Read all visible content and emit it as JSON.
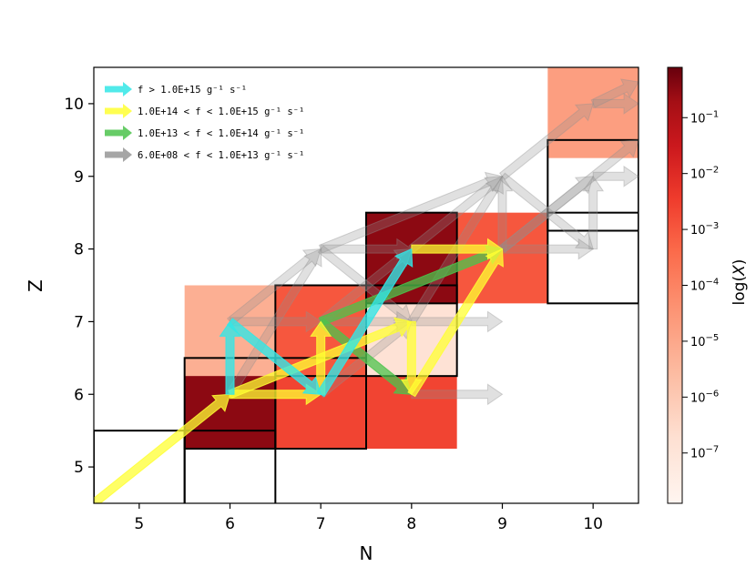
{
  "chart_data": {
    "type": "heatmap",
    "title": "",
    "xlabel": "N",
    "ylabel": "Z",
    "xlim": [
      4.5,
      10.5
    ],
    "ylim": [
      4.5,
      10.5
    ],
    "xticks": [
      "5",
      "6",
      "7",
      "8",
      "9",
      "10"
    ],
    "yticks": [
      "5",
      "6",
      "7",
      "8",
      "9",
      "10"
    ],
    "colorbar": {
      "label": "log(X)",
      "scale": "log",
      "ticks": [
        {
          "base": "10",
          "exp": "−1"
        },
        {
          "base": "10",
          "exp": "−2"
        },
        {
          "base": "10",
          "exp": "−3"
        },
        {
          "base": "10",
          "exp": "−4"
        },
        {
          "base": "10",
          "exp": "−5"
        },
        {
          "base": "10",
          "exp": "−6"
        },
        {
          "base": "10",
          "exp": "−7"
        }
      ]
    },
    "cells": [
      {
        "n": 5,
        "z": 5,
        "log_x": null,
        "stable": true
      },
      {
        "n": 6,
        "z": 5,
        "log_x": null,
        "stable": true
      },
      {
        "n": 6,
        "z": 6,
        "log_x": -0.6,
        "stable": true
      },
      {
        "n": 7,
        "z": 6,
        "log_x": -3.2,
        "stable": true
      },
      {
        "n": 8,
        "z": 6,
        "log_x": -3.2,
        "stable": false
      },
      {
        "n": 6,
        "z": 7,
        "log_x": -5.7,
        "stable": false
      },
      {
        "n": 7,
        "z": 7,
        "log_x": -3.6,
        "stable": true
      },
      {
        "n": 8,
        "z": 7,
        "log_x": -7.1,
        "stable": true
      },
      {
        "n": 8,
        "z": 8,
        "log_x": -0.6,
        "stable": true
      },
      {
        "n": 9,
        "z": 8,
        "log_x": -3.6,
        "stable": false
      },
      {
        "n": 10,
        "z": 8,
        "log_x": null,
        "stable": true
      },
      {
        "n": 10,
        "z": 9,
        "log_x": null,
        "stable": true
      },
      {
        "n": 10,
        "z": 10,
        "log_x": -5.3,
        "stable": false
      }
    ],
    "legend": [
      {
        "label": "f > 1.0E+15 g⁻¹ s⁻¹",
        "color": "#33e6e6"
      },
      {
        "label": "1.0E+14 < f < 1.0E+15 g⁻¹ s⁻¹",
        "color": "#ffff33"
      },
      {
        "label": "1.0E+13 < f < 1.0E+14 g⁻¹ s⁻¹",
        "color": "#4cc34c"
      },
      {
        "label": "6.0E+08 < f < 1.0E+13 g⁻¹ s⁻¹",
        "color": "#909090"
      }
    ],
    "flows": [
      {
        "from": [
          6,
          6
        ],
        "to": [
          6,
          7
        ],
        "band": 0
      },
      {
        "from": [
          6,
          7
        ],
        "to": [
          7,
          6
        ],
        "band": 0
      },
      {
        "from": [
          7,
          6
        ],
        "to": [
          8,
          8
        ],
        "band": 0
      },
      {
        "from": [
          4.5,
          4.5
        ],
        "to": [
          6,
          6
        ],
        "band": 1
      },
      {
        "from": [
          6,
          6
        ],
        "to": [
          7,
          6
        ],
        "band": 1
      },
      {
        "from": [
          7,
          6
        ],
        "to": [
          7,
          7
        ],
        "band": 1
      },
      {
        "from": [
          6,
          6
        ],
        "to": [
          8,
          7
        ],
        "band": 1
      },
      {
        "from": [
          8,
          7
        ],
        "to": [
          8,
          6
        ],
        "band": 1
      },
      {
        "from": [
          8,
          6
        ],
        "to": [
          9,
          8
        ],
        "band": 1
      },
      {
        "from": [
          8,
          8
        ],
        "to": [
          9,
          8
        ],
        "band": 1
      },
      {
        "from": [
          7,
          7
        ],
        "to": [
          9,
          8
        ],
        "band": 2
      },
      {
        "from": [
          7,
          7
        ],
        "to": [
          8,
          6
        ],
        "band": 2
      },
      {
        "from": [
          6,
          6
        ],
        "to": [
          7,
          8
        ],
        "band": 3
      },
      {
        "from": [
          7,
          8
        ],
        "to": [
          9,
          9
        ],
        "band": 3
      },
      {
        "from": [
          9,
          8
        ],
        "to": [
          9,
          9
        ],
        "band": 3
      },
      {
        "from": [
          8,
          7
        ],
        "to": [
          9,
          9
        ],
        "band": 3
      },
      {
        "from": [
          9,
          9
        ],
        "to": [
          10,
          10
        ],
        "band": 3
      },
      {
        "from": [
          9,
          9
        ],
        "to": [
          10,
          8
        ],
        "band": 3
      },
      {
        "from": [
          7,
          7
        ],
        "to": [
          8,
          7
        ],
        "band": 3
      },
      {
        "from": [
          10,
          10
        ],
        "to": [
          10.5,
          10.3
        ],
        "band": 3
      },
      {
        "from": [
          6,
          7
        ],
        "to": [
          7,
          7
        ],
        "band": 3
      },
      {
        "from": [
          7,
          8
        ],
        "to": [
          8,
          8
        ],
        "band": 3
      },
      {
        "from": [
          6,
          7
        ],
        "to": [
          7,
          8
        ],
        "band": 3
      },
      {
        "from": [
          8,
          7
        ],
        "to": [
          9,
          7
        ],
        "band": 3
      },
      {
        "from": [
          8,
          6
        ],
        "to": [
          9,
          6
        ],
        "band": 3
      },
      {
        "from": [
          7,
          8
        ],
        "to": [
          8,
          7
        ],
        "band": 3
      },
      {
        "from": [
          8,
          8
        ],
        "to": [
          9,
          9
        ],
        "band": 3
      },
      {
        "from": [
          9,
          8
        ],
        "to": [
          10,
          9
        ],
        "band": 3
      },
      {
        "from": [
          10,
          8
        ],
        "to": [
          10,
          9
        ],
        "band": 3
      },
      {
        "from": [
          9,
          8
        ],
        "to": [
          10,
          8
        ],
        "band": 3
      },
      {
        "from": [
          7,
          7
        ],
        "to": [
          8,
          8
        ],
        "band": 3
      },
      {
        "from": [
          10,
          9
        ],
        "to": [
          10.5,
          9
        ],
        "band": 3
      },
      {
        "from": [
          10,
          10
        ],
        "to": [
          10.5,
          10
        ],
        "band": 3
      },
      {
        "from": [
          9,
          8
        ],
        "to": [
          10.5,
          9.5
        ],
        "band": 3
      },
      {
        "from": [
          7,
          6
        ],
        "to": [
          8,
          7
        ],
        "band": 3
      }
    ]
  }
}
